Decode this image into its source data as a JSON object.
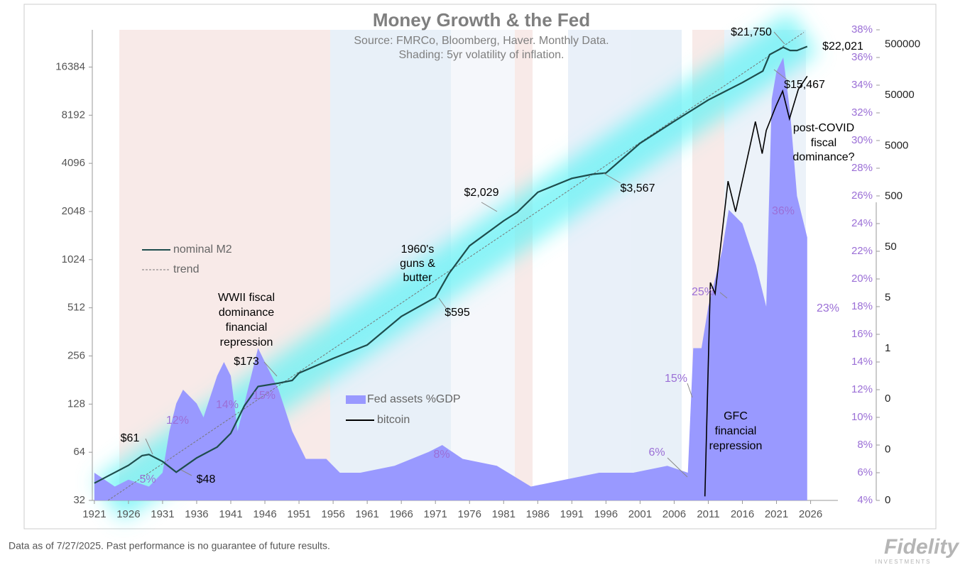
{
  "chart_data": {
    "type": "line",
    "title": "Money Growth & the Fed",
    "subtitle": [
      "Source: FMRCo, Bloomberg, Haver.  Monthly Data.",
      "Shading: 5yr volatility of inflation."
    ],
    "log_scale": true,
    "xlim": [
      1920.7,
      2030
    ],
    "xticks": [
      1921,
      1926,
      1931,
      1936,
      1941,
      1946,
      1951,
      1956,
      1961,
      1966,
      1971,
      1976,
      1981,
      1986,
      1991,
      1996,
      2001,
      2006,
      2011,
      2016,
      2021,
      2026
    ],
    "ylim": [
      32,
      28000
    ],
    "yticks": [
      32,
      64,
      128,
      256,
      512,
      1024,
      2048,
      4096,
      8192,
      16384
    ],
    "y2lim": [
      4,
      38
    ],
    "y2ticks": [
      {
        "value": 4,
        "label": "4%"
      },
      {
        "value": 6,
        "label": "6%"
      },
      {
        "value": 8,
        "label": "8%"
      },
      {
        "value": 10,
        "label": "10%"
      },
      {
        "value": 12,
        "label": "12%"
      },
      {
        "value": 14,
        "label": "14%"
      },
      {
        "value": 16,
        "label": "16%"
      },
      {
        "value": 18,
        "label": "18%"
      },
      {
        "value": 20,
        "label": "20%"
      },
      {
        "value": 22,
        "label": "22%"
      },
      {
        "value": 24,
        "label": "24%"
      },
      {
        "value": 26,
        "label": "26%"
      },
      {
        "value": 28,
        "label": "28%"
      },
      {
        "value": 30,
        "label": "30%"
      },
      {
        "value": 32,
        "label": "32%"
      },
      {
        "value": 34,
        "label": "34%"
      },
      {
        "value": 36,
        "label": "36%"
      },
      {
        "value": 38,
        "label": "38%"
      }
    ],
    "y3lim": [
      0.0005,
      970000
    ],
    "y3ticks": [
      {
        "value": 0.0005,
        "label": "0"
      },
      {
        "value": 0.005,
        "label": "0"
      },
      {
        "value": 0.05,
        "label": "0"
      },
      {
        "value": 0.5,
        "label": "1"
      },
      5,
      50,
      500,
      5000,
      50000,
      500000
    ],
    "series": [
      {
        "name": "nominal M2",
        "color": "#1e4d4d",
        "x": [
          1921,
          1926,
          1928,
          1929,
          1931,
          1933,
          1936,
          1939,
          1941,
          1943,
          1945,
          1948,
          1950,
          1951,
          1956,
          1961,
          1966,
          1971,
          1973,
          1976,
          1981,
          1983,
          1986,
          1991,
          1994,
          1996,
          2001,
          2006,
          2011,
          2016,
          2019,
          2020,
          2022,
          2023,
          2024,
          2025.5
        ],
        "values": [
          41,
          53,
          61,
          62,
          56,
          48,
          59,
          69,
          84,
          125,
          165,
          173,
          180,
          200,
          247,
          300,
          452,
          595,
          840,
          1250,
          1790,
          2029,
          2700,
          3300,
          3500,
          3567,
          5470,
          7500,
          10200,
          13100,
          15467,
          19600,
          21750,
          20800,
          20800,
          22021
        ]
      },
      {
        "name": "trend",
        "color": "#777777",
        "dashed": true,
        "x": [
          1923,
          2025
        ],
        "values": [
          32,
          27000
        ]
      },
      {
        "name": "Fed assets %GDP",
        "color": "#9999ff",
        "axis": "y2",
        "area": true,
        "x": [
          1921,
          1924,
          1926,
          1929,
          1931,
          1932,
          1933,
          1934,
          1936,
          1937,
          1939,
          1940,
          1941,
          1942,
          1944,
          1945,
          1946,
          1948,
          1950,
          1952,
          1955,
          1957,
          1960,
          1965,
          1970,
          1972,
          1975,
          1980,
          1985,
          1990,
          1995,
          2000,
          2005,
          2008,
          2008.8,
          2010,
          2011,
          2013,
          2014,
          2016,
          2018,
          2019.5,
          2020.3,
          2021,
          2022,
          2023,
          2024,
          2025.5
        ],
        "values": [
          6,
          5,
          5.5,
          5,
          6,
          9,
          11,
          12,
          11,
          10,
          13,
          14,
          13,
          9,
          13,
          15,
          14,
          12,
          9,
          7,
          7,
          6,
          6,
          6.5,
          7.5,
          8,
          7,
          6.5,
          5,
          5.5,
          6,
          6,
          6.5,
          6,
          15,
          15,
          18,
          22,
          25,
          24,
          21,
          18,
          33,
          35,
          36,
          32,
          26,
          23
        ]
      },
      {
        "name": "bitcoin",
        "color": "#000000",
        "axis": "y3",
        "x": [
          2010.5,
          2011.3,
          2012,
          2013.9,
          2015,
          2017.9,
          2018.9,
          2019.5,
          2020.9,
          2021.9,
          2022.9,
          2024.2,
          2025.5
        ],
        "values": [
          0.0006,
          10,
          6,
          1000,
          250,
          15000,
          3500,
          10000,
          30000,
          60000,
          17000,
          65000,
          118000
        ]
      }
    ],
    "annotations": [
      "$61",
      "12%",
      "14%",
      "15%",
      "5%",
      "$48",
      "WWII fiscal",
      "dominance",
      "financial",
      "repression",
      "$173",
      "1960's",
      "guns &",
      "butter",
      "$595",
      "8%",
      "$2,029",
      "$3,567",
      "6%",
      "15%",
      "25%",
      "GFC",
      "financial",
      "repression",
      "36%",
      "23%",
      "$21,750",
      "$22,021",
      "$15,467",
      "post-COVID",
      "fiscal",
      "dominance?"
    ],
    "footnote": "Data as of 7/27/2025. Past performance is no guarantee of future results.",
    "logo": "Fidelity",
    "logo_sub": "INVESTMENTS"
  }
}
